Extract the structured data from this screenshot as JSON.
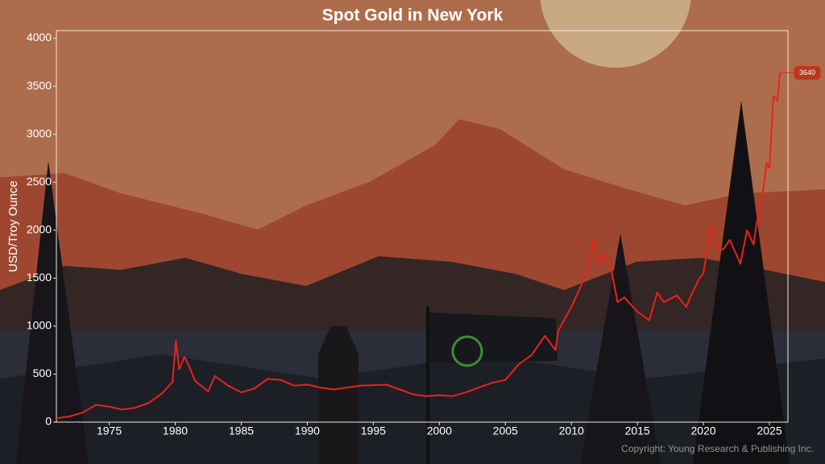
{
  "chart_data": {
    "type": "line",
    "title": "Spot Gold in New York",
    "y_label": "USD/Troy Ounce",
    "copyright": "Copyright: Young Research & Publishing Inc.",
    "xlim": [
      1971,
      2026.4
    ],
    "xticks": [
      1975,
      1980,
      1985,
      1990,
      1995,
      2000,
      2005,
      2010,
      2015,
      2020,
      2025
    ],
    "ylim": [
      0,
      4080
    ],
    "yticks": [
      0,
      500,
      1000,
      1500,
      2000,
      2500,
      3000,
      3500,
      4000
    ],
    "x": [
      1971,
      1972,
      1973,
      1974,
      1975,
      1976,
      1977,
      1978,
      1979,
      1979.8,
      1980.05,
      1980.3,
      1980.7,
      1981,
      1981.5,
      1982.5,
      1983,
      1984,
      1985,
      1986,
      1987,
      1988,
      1989,
      1990,
      1991,
      1992,
      1993,
      1994,
      1995,
      1996,
      1997,
      1998,
      1999,
      2000,
      2001,
      2002,
      2003,
      2004,
      2005,
      2006,
      2007,
      2008,
      2008.8,
      2009,
      2010,
      2011,
      2011.7,
      2012,
      2012.5,
      2013,
      2013.5,
      2014,
      2015,
      2015.9,
      2016.5,
      2017,
      2018,
      2018.7,
      2019,
      2019.7,
      2020,
      2020.6,
      2021,
      2021.5,
      2022,
      2022.8,
      2023.3,
      2023.8,
      2024,
      2024.5,
      2024.8,
      2025,
      2025.3,
      2025.6,
      2025.8
    ],
    "series": [
      {
        "name": "Spot Gold",
        "color": "#e8231b",
        "values": [
          40,
          60,
          100,
          180,
          160,
          130,
          150,
          200,
          300,
          420,
          850,
          550,
          680,
          600,
          430,
          320,
          480,
          380,
          310,
          350,
          450,
          440,
          380,
          390,
          360,
          340,
          360,
          380,
          385,
          390,
          340,
          290,
          270,
          280,
          270,
          310,
          360,
          410,
          440,
          600,
          700,
          900,
          750,
          950,
          1200,
          1500,
          1900,
          1650,
          1750,
          1600,
          1250,
          1300,
          1150,
          1060,
          1350,
          1250,
          1320,
          1200,
          1300,
          1500,
          1550,
          2050,
          1800,
          1800,
          1900,
          1650,
          2000,
          1850,
          2050,
          2400,
          2700,
          2650,
          3400,
          3350,
          3640
        ]
      }
    ]
  }
}
